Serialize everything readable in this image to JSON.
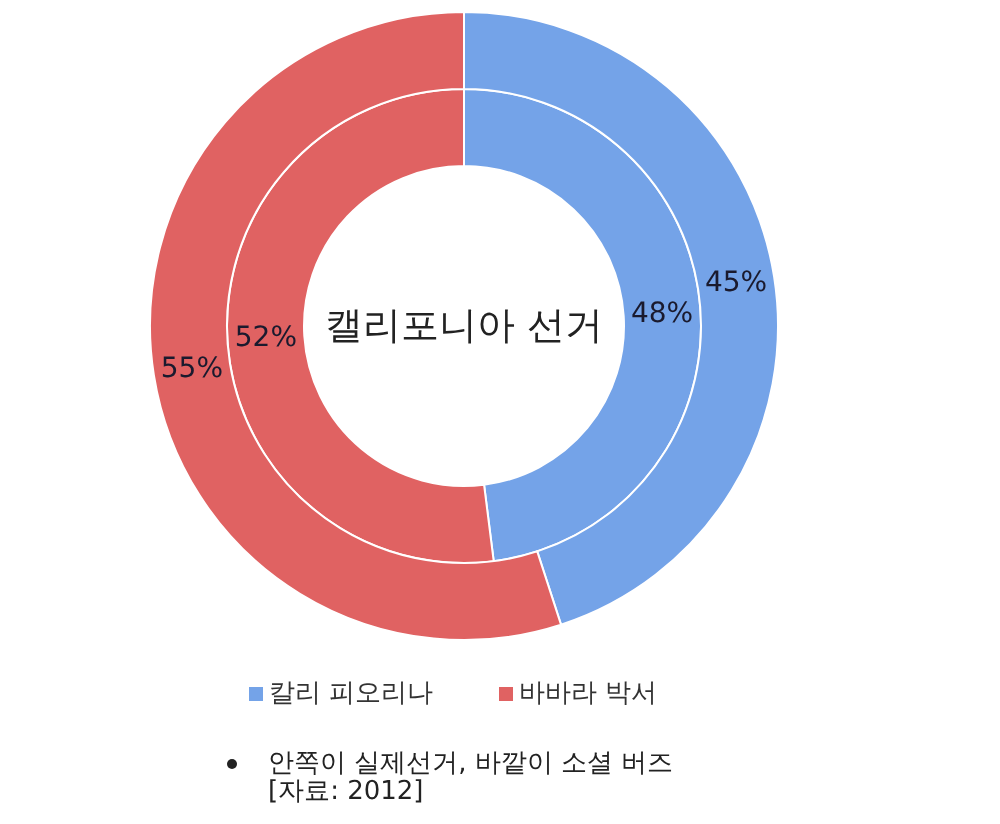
{
  "chart_data": {
    "type": "donut",
    "title": "캘리포니아 선거",
    "categories": [
      "칼리 피오리나",
      "바바라 박서"
    ],
    "colors": [
      "#74a3e8",
      "#e06262"
    ],
    "series": [
      {
        "values": [
          48,
          52
        ],
        "value_labels": [
          "48%",
          "52%"
        ]
      },
      {
        "values": [
          45,
          55
        ],
        "value_labels": [
          "45%",
          "55%"
        ]
      }
    ],
    "legend": "bottom",
    "annotations": [
      "안쪽이 실제선거, 바깥이 소셜 버즈",
      "[자료: 2012]"
    ]
  }
}
